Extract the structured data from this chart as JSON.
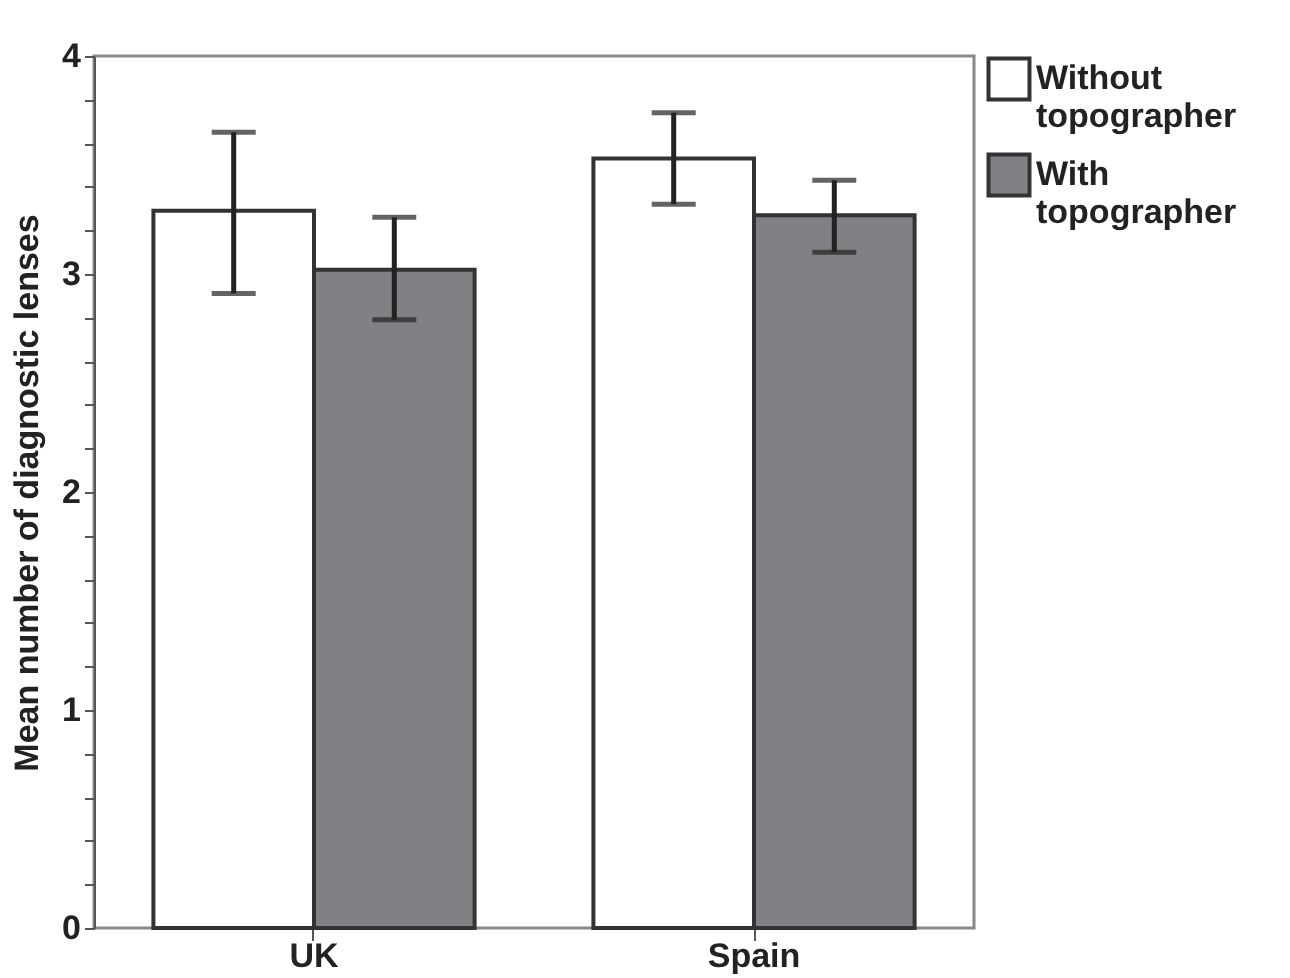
{
  "chart_data": {
    "type": "bar",
    "ylabel": "Mean number of diagnostic lenses",
    "categories": [
      "UK",
      "Spain"
    ],
    "series": [
      {
        "name": "Without topographer",
        "color": "#ffffff",
        "values": [
          3.29,
          3.53
        ],
        "errors": [
          [
            2.91,
            3.65
          ],
          [
            3.32,
            3.74
          ]
        ]
      },
      {
        "name": "With topographer",
        "color": "#808184",
        "values": [
          3.02,
          3.27
        ],
        "errors": [
          [
            2.79,
            3.26
          ],
          [
            3.1,
            3.43
          ]
        ]
      }
    ],
    "ylim": [
      0,
      4
    ],
    "yticks": [
      0,
      {
        "value": 0.2,
        "label": null
      },
      {
        "value": 0.4,
        "label": null
      },
      {
        "value": 0.6,
        "label": null
      },
      {
        "value": 0.8,
        "label": null
      },
      1,
      {
        "value": 1.2,
        "label": null
      },
      {
        "value": 1.4,
        "label": null
      },
      {
        "value": 1.6,
        "label": null
      },
      {
        "value": 1.8,
        "label": null
      },
      2,
      {
        "value": 2.2,
        "label": null
      },
      {
        "value": 2.4,
        "label": null
      },
      {
        "value": 2.6,
        "label": null
      },
      {
        "value": 2.8,
        "label": null
      },
      3,
      {
        "value": 3.2,
        "label": null
      },
      {
        "value": 3.4,
        "label": null
      },
      {
        "value": 3.6,
        "label": null
      },
      {
        "value": 3.8,
        "label": null
      },
      4
    ],
    "grid": false,
    "legend": "top right"
  }
}
